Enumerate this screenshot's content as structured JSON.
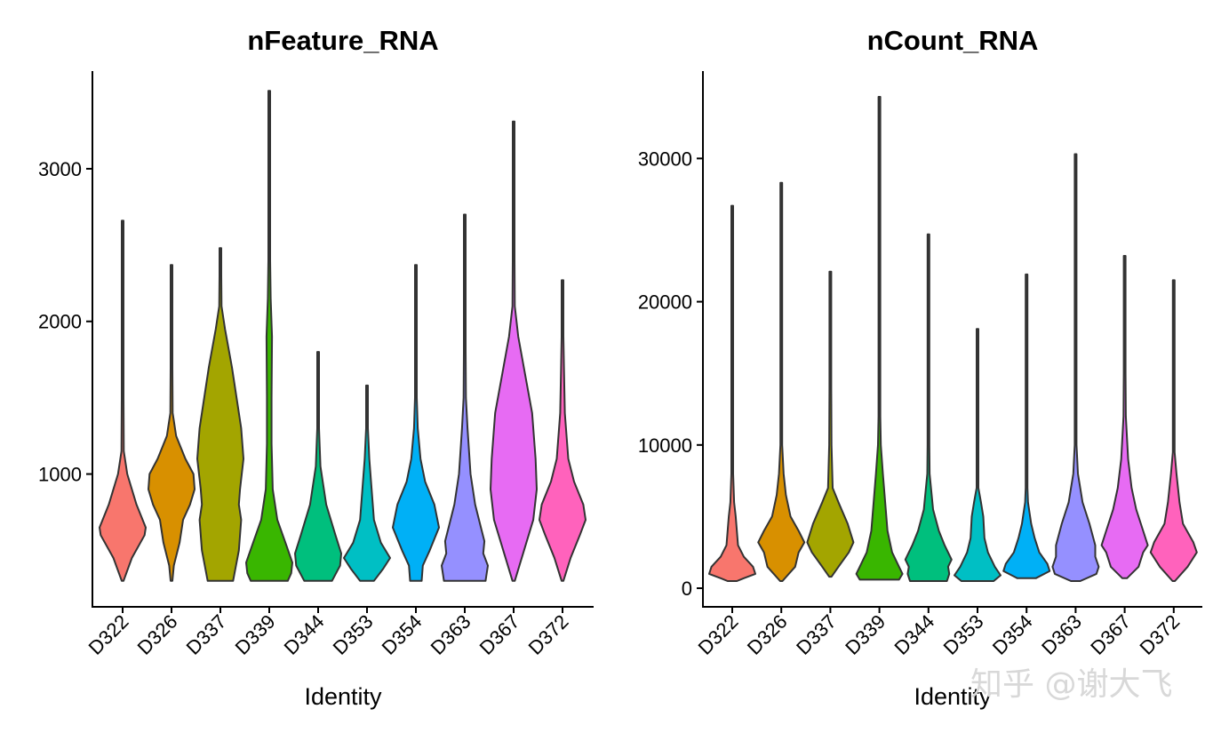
{
  "watermark": "知乎 @谢大飞",
  "chart_data": [
    {
      "type": "violin",
      "title": "nFeature_RNA",
      "xlabel": "Identity",
      "ylabel": "",
      "categories": [
        "D322",
        "D326",
        "D337",
        "D339",
        "D344",
        "D353",
        "D354",
        "D363",
        "D367",
        "D372"
      ],
      "colors": [
        "#F8766D",
        "#D89000",
        "#A3A500",
        "#39B600",
        "#00BF7D",
        "#00BFC4",
        "#00B0F6",
        "#9590FF",
        "#E76BF3",
        "#FF62BC"
      ],
      "yticks": [
        1000,
        2000,
        3000
      ],
      "ylim": [
        130,
        3640
      ],
      "grid": false,
      "legend": "none",
      "violins": [
        {
          "min": 300,
          "max": 2660,
          "density": [
            [
              300,
              0
            ],
            [
              450,
              0.4
            ],
            [
              600,
              0.95
            ],
            [
              650,
              1
            ],
            [
              800,
              0.6
            ],
            [
              1000,
              0.2
            ],
            [
              1150,
              0.05
            ],
            [
              1500,
              0.02
            ]
          ]
        },
        {
          "min": 300,
          "max": 2370,
          "density": [
            [
              300,
              0.02
            ],
            [
              400,
              0.1
            ],
            [
              550,
              0.35
            ],
            [
              700,
              0.5
            ],
            [
              800,
              0.8
            ],
            [
              900,
              1
            ],
            [
              1000,
              0.95
            ],
            [
              1100,
              0.6
            ],
            [
              1250,
              0.2
            ],
            [
              1400,
              0.05
            ],
            [
              1700,
              0.02
            ]
          ]
        },
        {
          "min": 300,
          "max": 2480,
          "density": [
            [
              300,
              0.55
            ],
            [
              500,
              0.8
            ],
            [
              700,
              0.9
            ],
            [
              800,
              0.8
            ],
            [
              900,
              0.85
            ],
            [
              1100,
              1
            ],
            [
              1300,
              0.9
            ],
            [
              1450,
              0.75
            ],
            [
              1700,
              0.5
            ],
            [
              1950,
              0.2
            ],
            [
              2100,
              0.05
            ],
            [
              2300,
              0.02
            ]
          ]
        },
        {
          "min": 300,
          "max": 3510,
          "density": [
            [
              300,
              0.8
            ],
            [
              350,
              0.95
            ],
            [
              420,
              1
            ],
            [
              550,
              0.7
            ],
            [
              700,
              0.35
            ],
            [
              900,
              0.15
            ],
            [
              1200,
              0.1
            ],
            [
              1500,
              0.1
            ],
            [
              1900,
              0.12
            ],
            [
              2150,
              0.06
            ],
            [
              2400,
              0.03
            ]
          ]
        },
        {
          "min": 300,
          "max": 1800,
          "density": [
            [
              300,
              0.6
            ],
            [
              400,
              0.95
            ],
            [
              480,
              1
            ],
            [
              600,
              0.75
            ],
            [
              800,
              0.35
            ],
            [
              950,
              0.2
            ],
            [
              1050,
              0.1
            ],
            [
              1300,
              0.03
            ]
          ]
        },
        {
          "min": 300,
          "max": 1580,
          "density": [
            [
              300,
              0.3
            ],
            [
              380,
              0.7
            ],
            [
              450,
              1
            ],
            [
              550,
              0.6
            ],
            [
              700,
              0.3
            ],
            [
              900,
              0.2
            ],
            [
              1100,
              0.1
            ],
            [
              1300,
              0.03
            ]
          ]
        },
        {
          "min": 300,
          "max": 2370,
          "density": [
            [
              300,
              0.25
            ],
            [
              400,
              0.3
            ],
            [
              500,
              0.6
            ],
            [
              650,
              1
            ],
            [
              800,
              0.8
            ],
            [
              950,
              0.4
            ],
            [
              1100,
              0.2
            ],
            [
              1300,
              0.08
            ],
            [
              1500,
              0.04
            ]
          ]
        },
        {
          "min": 300,
          "max": 2700,
          "density": [
            [
              300,
              0.9
            ],
            [
              400,
              1
            ],
            [
              480,
              0.8
            ],
            [
              560,
              0.85
            ],
            [
              650,
              0.7
            ],
            [
              800,
              0.45
            ],
            [
              1000,
              0.25
            ],
            [
              1300,
              0.12
            ],
            [
              1500,
              0.05
            ],
            [
              1800,
              0.02
            ]
          ]
        },
        {
          "min": 300,
          "max": 3310,
          "density": [
            [
              300,
              0.05
            ],
            [
              500,
              0.45
            ],
            [
              700,
              0.85
            ],
            [
              900,
              1
            ],
            [
              1100,
              0.95
            ],
            [
              1400,
              0.8
            ],
            [
              1650,
              0.5
            ],
            [
              1900,
              0.2
            ],
            [
              2100,
              0.05
            ],
            [
              2400,
              0.02
            ]
          ]
        },
        {
          "min": 300,
          "max": 2270,
          "density": [
            [
              300,
              0.02
            ],
            [
              450,
              0.35
            ],
            [
              600,
              0.75
            ],
            [
              700,
              1
            ],
            [
              800,
              0.9
            ],
            [
              950,
              0.5
            ],
            [
              1100,
              0.25
            ],
            [
              1400,
              0.1
            ],
            [
              1700,
              0.06
            ],
            [
              1900,
              0.02
            ]
          ]
        }
      ]
    },
    {
      "type": "violin",
      "title": "nCount_RNA",
      "xlabel": "Identity",
      "ylabel": "",
      "categories": [
        "D322",
        "D326",
        "D337",
        "D339",
        "D344",
        "D353",
        "D354",
        "D363",
        "D367",
        "D372"
      ],
      "colors": [
        "#F8766D",
        "#D89000",
        "#A3A500",
        "#39B600",
        "#00BF7D",
        "#00BFC4",
        "#00B0F6",
        "#9590FF",
        "#E76BF3",
        "#FF62BC"
      ],
      "yticks": [
        0,
        10000,
        20000,
        30000
      ],
      "ylim": [
        -1300,
        36100
      ],
      "grid": false,
      "legend": "none",
      "violins": [
        {
          "min": 500,
          "max": 26700,
          "density": [
            [
              500,
              0.2
            ],
            [
              700,
              0.5
            ],
            [
              1000,
              1
            ],
            [
              1500,
              0.9
            ],
            [
              2200,
              0.5
            ],
            [
              3000,
              0.25
            ],
            [
              5000,
              0.15
            ],
            [
              6000,
              0.08
            ],
            [
              8000,
              0.02
            ]
          ]
        },
        {
          "min": 500,
          "max": 28300,
          "density": [
            [
              500,
              0.05
            ],
            [
              1500,
              0.6
            ],
            [
              2500,
              0.75
            ],
            [
              3200,
              1
            ],
            [
              4000,
              0.75
            ],
            [
              5000,
              0.4
            ],
            [
              6500,
              0.2
            ],
            [
              8000,
              0.1
            ],
            [
              10000,
              0.02
            ]
          ]
        },
        {
          "min": 800,
          "max": 22100,
          "density": [
            [
              800,
              0.05
            ],
            [
              1500,
              0.35
            ],
            [
              2500,
              0.8
            ],
            [
              3200,
              1
            ],
            [
              4500,
              0.75
            ],
            [
              6000,
              0.35
            ],
            [
              7000,
              0.1
            ],
            [
              10000,
              0.05
            ],
            [
              14000,
              0.03
            ]
          ]
        },
        {
          "min": 600,
          "max": 34300,
          "density": [
            [
              600,
              0.85
            ],
            [
              1000,
              1
            ],
            [
              1500,
              0.85
            ],
            [
              2500,
              0.55
            ],
            [
              4000,
              0.35
            ],
            [
              6000,
              0.25
            ],
            [
              8000,
              0.15
            ],
            [
              10000,
              0.06
            ],
            [
              12000,
              0.02
            ]
          ]
        },
        {
          "min": 500,
          "max": 24700,
          "density": [
            [
              500,
              0.8
            ],
            [
              1000,
              0.9
            ],
            [
              1500,
              0.85
            ],
            [
              2000,
              1
            ],
            [
              3000,
              0.7
            ],
            [
              4000,
              0.45
            ],
            [
              5500,
              0.2
            ],
            [
              8000,
              0.05
            ],
            [
              10000,
              0.02
            ]
          ]
        },
        {
          "min": 500,
          "max": 18100,
          "density": [
            [
              500,
              0.7
            ],
            [
              900,
              1
            ],
            [
              1500,
              0.75
            ],
            [
              2500,
              0.45
            ],
            [
              3500,
              0.3
            ],
            [
              5000,
              0.25
            ],
            [
              6000,
              0.15
            ],
            [
              7000,
              0.03
            ]
          ]
        },
        {
          "min": 700,
          "max": 21900,
          "density": [
            [
              700,
              0.4
            ],
            [
              1200,
              1
            ],
            [
              1700,
              0.9
            ],
            [
              2500,
              0.55
            ],
            [
              3500,
              0.35
            ],
            [
              4500,
              0.2
            ],
            [
              6000,
              0.06
            ],
            [
              7000,
              0.02
            ]
          ]
        },
        {
          "min": 500,
          "max": 30300,
          "density": [
            [
              500,
              0.2
            ],
            [
              1000,
              0.9
            ],
            [
              1500,
              1
            ],
            [
              2200,
              0.85
            ],
            [
              3000,
              0.85
            ],
            [
              4500,
              0.6
            ],
            [
              6000,
              0.3
            ],
            [
              8000,
              0.1
            ],
            [
              10000,
              0.04
            ]
          ]
        },
        {
          "min": 700,
          "max": 23200,
          "density": [
            [
              700,
              0.1
            ],
            [
              1500,
              0.6
            ],
            [
              2500,
              0.8
            ],
            [
              3000,
              1
            ],
            [
              4000,
              0.8
            ],
            [
              5500,
              0.5
            ],
            [
              7000,
              0.3
            ],
            [
              9000,
              0.15
            ],
            [
              12000,
              0.05
            ],
            [
              15000,
              0.02
            ]
          ]
        },
        {
          "min": 500,
          "max": 21500,
          "density": [
            [
              500,
              0.05
            ],
            [
              1500,
              0.6
            ],
            [
              2500,
              1
            ],
            [
              3200,
              0.85
            ],
            [
              4500,
              0.4
            ],
            [
              6000,
              0.25
            ],
            [
              8000,
              0.12
            ],
            [
              9500,
              0.04
            ],
            [
              11000,
              0.02
            ]
          ]
        }
      ]
    }
  ]
}
